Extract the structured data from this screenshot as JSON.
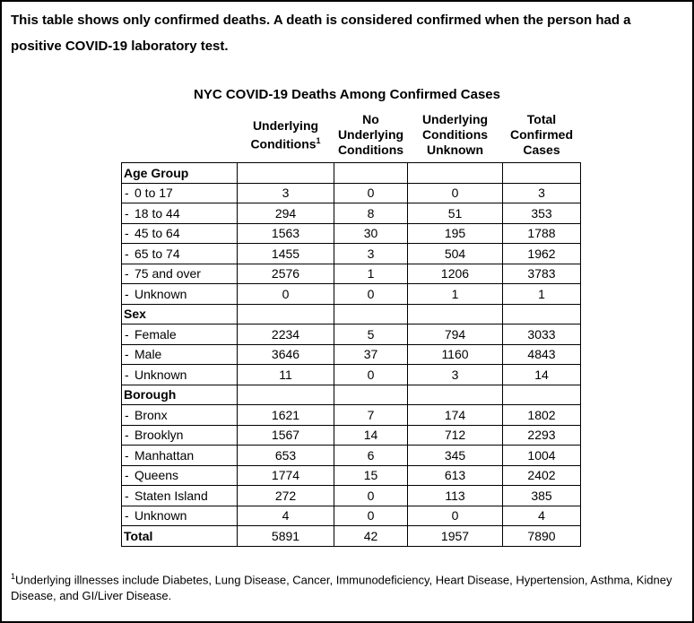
{
  "page": {
    "intro": "This table shows only confirmed deaths. A death is considered confirmed when the person had a positive COVID-19 laboratory test.",
    "footnote_marker": "1",
    "footnote_text": "Underlying illnesses include Diabetes, Lung Disease, Cancer, Immunodeficiency, Heart Disease, Hypertension, Asthma, Kidney Disease, and GI/Liver Disease."
  },
  "table": {
    "title": "NYC COVID-19 Deaths Among Confirmed Cases",
    "row_prefix": "-",
    "headers": {
      "col1": "Underlying Conditions",
      "col1_sup": "1",
      "col2": "No Underlying Conditions",
      "col3": "Underlying Conditions Unknown",
      "col4": "Total Confirmed Cases"
    },
    "sections": [
      {
        "label": "Age Group",
        "rows": [
          {
            "label": "0 to 17",
            "values": [
              "3",
              "0",
              "0",
              "3"
            ]
          },
          {
            "label": "18 to 44",
            "values": [
              "294",
              "8",
              "51",
              "353"
            ]
          },
          {
            "label": "45 to 64",
            "values": [
              "1563",
              "30",
              "195",
              "1788"
            ]
          },
          {
            "label": "65 to 74",
            "values": [
              "1455",
              "3",
              "504",
              "1962"
            ]
          },
          {
            "label": "75 and over",
            "values": [
              "2576",
              "1",
              "1206",
              "3783"
            ]
          },
          {
            "label": "Unknown",
            "values": [
              "0",
              "0",
              "1",
              "1"
            ]
          }
        ]
      },
      {
        "label": "Sex",
        "rows": [
          {
            "label": "Female",
            "values": [
              "2234",
              "5",
              "794",
              "3033"
            ]
          },
          {
            "label": "Male",
            "values": [
              "3646",
              "37",
              "1160",
              "4843"
            ]
          },
          {
            "label": "Unknown",
            "values": [
              "11",
              "0",
              "3",
              "14"
            ]
          }
        ]
      },
      {
        "label": "Borough",
        "rows": [
          {
            "label": "Bronx",
            "values": [
              "1621",
              "7",
              "174",
              "1802"
            ]
          },
          {
            "label": "Brooklyn",
            "values": [
              "1567",
              "14",
              "712",
              "2293"
            ]
          },
          {
            "label": "Manhattan",
            "values": [
              "653",
              "6",
              "345",
              "1004"
            ]
          },
          {
            "label": "Queens",
            "values": [
              "1774",
              "15",
              "613",
              "2402"
            ]
          },
          {
            "label": "Staten Island",
            "values": [
              "272",
              "0",
              "113",
              "385"
            ]
          },
          {
            "label": "Unknown",
            "values": [
              "4",
              "0",
              "0",
              "4"
            ]
          }
        ]
      }
    ],
    "total": {
      "label": "Total",
      "values": [
        "5891",
        "42",
        "1957",
        "7890"
      ]
    }
  }
}
